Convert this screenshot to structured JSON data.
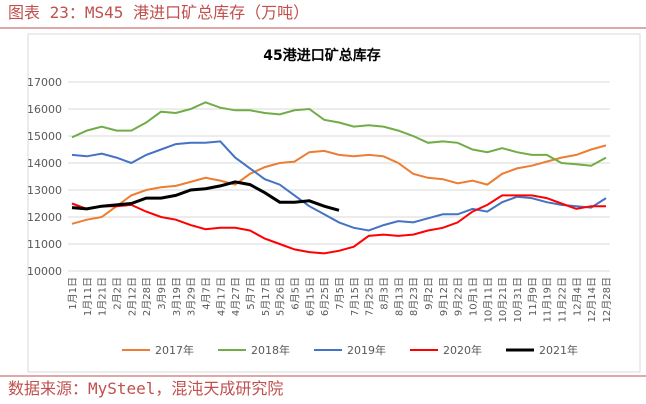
{
  "header": "图表 23：MS45 港进口矿总库存（万吨）",
  "footer": "数据来源：MySteel，混沌天成研究院",
  "chart_data": {
    "type": "line",
    "title": "45港进口矿总库存",
    "categories": [
      "1月1日",
      "1月11日",
      "1月21日",
      "2月2日",
      "2月12日",
      "2月28日",
      "3月9日",
      "3月19日",
      "3月29日",
      "4月7日",
      "4月17日",
      "4月27日",
      "5月7日",
      "5月17日",
      "5月26日",
      "6月5日",
      "6月15日",
      "6月25日",
      "7月5日",
      "7月15日",
      "7月25日",
      "8月3日",
      "8月13日",
      "8月23日",
      "9月2日",
      "9月12日",
      "9月22日",
      "10月1日",
      "10月11日",
      "10月21日",
      "10月31日",
      "11月9日",
      "11月19日",
      "11月22日",
      "12月4日",
      "12月14日",
      "12月28日"
    ],
    "series": [
      {
        "name": "2017年",
        "color": "#ed7d31",
        "values": [
          11750,
          11900,
          12000,
          12400,
          12800,
          13000,
          13100,
          13150,
          13300,
          13450,
          13350,
          13200,
          13600,
          13850,
          14000,
          14050,
          14400,
          14450,
          14300,
          14250,
          14300,
          14250,
          14000,
          13600,
          13450,
          13400,
          13250,
          13350,
          13200,
          13600,
          13800,
          13900,
          14050,
          14200,
          14300,
          14500,
          14650
        ]
      },
      {
        "name": "2018年",
        "color": "#70ad47",
        "values": [
          14950,
          15200,
          15350,
          15200,
          15200,
          15500,
          15900,
          15850,
          16000,
          16250,
          16050,
          15950,
          15950,
          15850,
          15800,
          15950,
          16000,
          15600,
          15500,
          15350,
          15400,
          15350,
          15200,
          15000,
          14750,
          14800,
          14750,
          14500,
          14400,
          14550,
          14400,
          14300,
          14300,
          14000,
          13950,
          13900,
          14200
        ]
      },
      {
        "name": "2019年",
        "color": "#4472c4",
        "values": [
          14300,
          14250,
          14350,
          14200,
          14000,
          14300,
          14500,
          14700,
          14750,
          14750,
          14800,
          14200,
          13800,
          13400,
          13200,
          12800,
          12400,
          12100,
          11800,
          11600,
          11500,
          11700,
          11850,
          11800,
          11950,
          12100,
          12100,
          12300,
          12200,
          12550,
          12750,
          12700,
          12550,
          12450,
          12400,
          12350,
          12700
        ]
      },
      {
        "name": "2020年",
        "color": "#ff0000",
        "values": [
          12500,
          12300,
          12400,
          12400,
          12450,
          12200,
          12000,
          11900,
          11700,
          11550,
          11600,
          11600,
          11500,
          11200,
          11000,
          10800,
          10700,
          10650,
          10750,
          10900,
          11300,
          11350,
          11300,
          11350,
          11500,
          11600,
          11800,
          12200,
          12450,
          12800,
          12800,
          12800,
          12700,
          12500,
          12300,
          12400,
          12400
        ]
      },
      {
        "name": "2021年",
        "color": "#000000",
        "values": [
          12350,
          12300,
          12400,
          12450,
          12500,
          12700,
          12700,
          12800,
          13000,
          13050,
          13150,
          13300,
          13200,
          12900,
          12550,
          12550,
          12600,
          12400,
          12250,
          null,
          null,
          null,
          null,
          null,
          null,
          null,
          null,
          null,
          null,
          null,
          null,
          null,
          null,
          null,
          null,
          null,
          null
        ]
      }
    ],
    "ylim": [
      10000,
      17000
    ],
    "yticks": [
      10000,
      11000,
      12000,
      13000,
      14000,
      15000,
      16000,
      17000
    ],
    "grid": true
  }
}
